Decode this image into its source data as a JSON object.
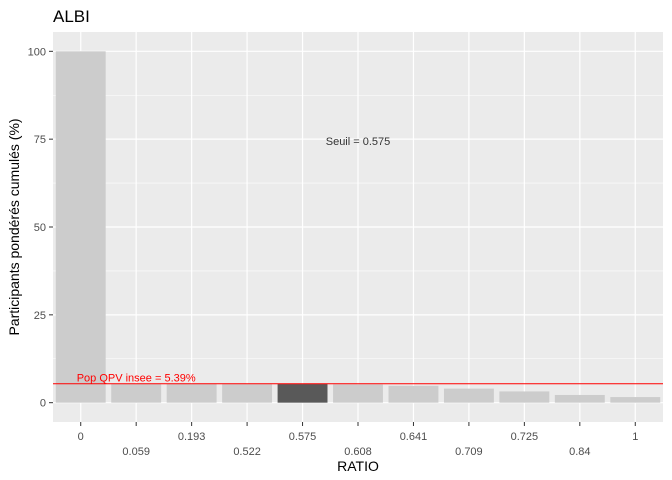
{
  "chart_data": {
    "type": "bar",
    "title": "ALBI",
    "xlabel": "RATIO",
    "ylabel": "Participants pondérés cumulés (%)",
    "categories": [
      "0",
      "0.059",
      "0.193",
      "0.522",
      "0.575",
      "0.608",
      "0.641",
      "0.709",
      "0.725",
      "0.84",
      "1"
    ],
    "values": [
      100,
      5.4,
      5.4,
      5.3,
      5.3,
      5.2,
      4.8,
      4.0,
      3.2,
      2.2,
      1.6
    ],
    "ylim": [
      -5.5,
      105.5
    ],
    "yticks": [
      0,
      25,
      50,
      75,
      100
    ],
    "highlight_category": "0.575",
    "grid": true,
    "colors": {
      "panel": "#ebebeb",
      "grid": "#ffffff",
      "bar": "#cccccc",
      "bar_highlight": "#595959",
      "reference_line": "#ff0000"
    },
    "annotations": [
      {
        "text": "Seuil = 0.575",
        "x_category": "0.608",
        "y": 74.5,
        "color": "#333333"
      },
      {
        "text": "Pop QPV insee = 5.39%",
        "x_category": "0.059",
        "y": 7.2,
        "color": "#ff0000"
      }
    ],
    "reference_line": {
      "y": 5.39,
      "color": "#ff0000"
    }
  }
}
